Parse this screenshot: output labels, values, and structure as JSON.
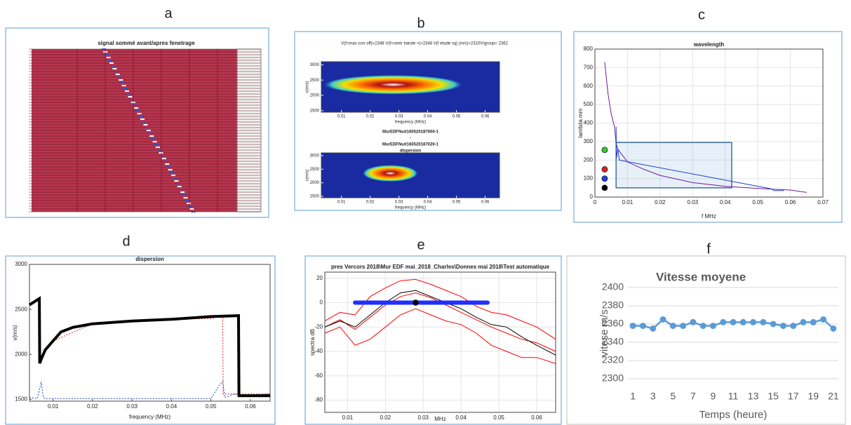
{
  "chart_data": [
    {
      "type": "image",
      "panel": "a",
      "title": "signal sommé avant/apres fenetrage"
    },
    {
      "type": "heatmap",
      "panel": "b",
      "title": "V(f=max corr off)=2348 V(f=centr bande <)=2348 V(f etude sq) (m/s)=2310V/group= 2362",
      "subtitles": [
        "MurEDFNuit160520187000-1",
        "-",
        "MurEDFNuit160520187020-1",
        "dispersion"
      ],
      "xlabel": "frequency (MHz)",
      "ylabel": "v(m/s)",
      "xlim": [
        0.003,
        0.065
      ],
      "xticks": [
        0.01,
        0.02,
        0.03,
        0.04,
        0.05,
        0.06
      ],
      "ylim": [
        1450,
        3100
      ],
      "yticks": [
        1500,
        2000,
        2500,
        3000
      ]
    },
    {
      "type": "line",
      "panel": "c",
      "title": "wavelength",
      "xlabel": "f MHz",
      "ylabel": "lambda mm",
      "xlim": [
        0,
        0.07
      ],
      "xticks": [
        0,
        0.01,
        0.02,
        0.03,
        0.04,
        0.05,
        0.06,
        0.07
      ],
      "ylim": [
        0,
        800
      ],
      "yticks": [
        0,
        100,
        200,
        300,
        400,
        500,
        600,
        700,
        800
      ],
      "grid": true,
      "series": [
        {
          "color": "#6a1b9a",
          "x": [
            0.003,
            0.004,
            0.005,
            0.006,
            0.0065,
            0.007,
            0.01,
            0.015,
            0.02,
            0.03,
            0.04,
            0.05,
            0.06,
            0.065
          ],
          "values": [
            730,
            560,
            450,
            380,
            290,
            260,
            190,
            150,
            117,
            78,
            58,
            47,
            38,
            25
          ]
        },
        {
          "color": "#1f3fd0",
          "x": [
            0.0065,
            0.0066,
            0.007,
            0.0075,
            0.054,
            0.055,
            0.058
          ],
          "values": [
            380,
            210,
            260,
            200,
            45,
            35,
            35
          ]
        }
      ],
      "points": [
        {
          "color": "#33cc33",
          "x": 0.003,
          "value": 255
        },
        {
          "color": "#e02020",
          "x": 0.003,
          "value": 150
        },
        {
          "color": "#2040e0",
          "x": 0.003,
          "value": 100
        },
        {
          "color": "#000000",
          "x": 0.003,
          "value": 50
        }
      ],
      "region": {
        "x": [
          0.0065,
          0.042
        ],
        "values": [
          50,
          295
        ]
      }
    },
    {
      "type": "line",
      "panel": "d",
      "title": "dispersion",
      "xlabel": "frequency (MHz)",
      "ylabel": "v(m/s)",
      "xlim": [
        0.004,
        0.065
      ],
      "xticks": [
        0.01,
        0.02,
        0.03,
        0.04,
        0.05,
        0.06
      ],
      "ylim": [
        1480,
        3000
      ],
      "yticks": [
        1500,
        2000,
        2500,
        3000
      ],
      "grid": false,
      "series": [
        {
          "color": "#e02020",
          "dash": true,
          "x": [
            0.0065,
            0.0066,
            0.007,
            0.01,
            0.02,
            0.04,
            0.05,
            0.052,
            0.053,
            0.0531,
            0.065
          ],
          "values": [
            2600,
            1950,
            1980,
            2150,
            2340,
            2390,
            2400,
            2420,
            2420,
            1560,
            1560
          ]
        },
        {
          "color": "#1f3fd0",
          "dash": true,
          "x": [
            0.004,
            0.006,
            0.0065,
            0.007,
            0.0075,
            0.008,
            0.05,
            0.052,
            0.053,
            0.0535,
            0.056,
            0.058,
            0.065
          ],
          "values": [
            1520,
            1510,
            1600,
            1700,
            1520,
            1510,
            1510,
            1650,
            1700,
            1520,
            1560,
            1540,
            1560
          ]
        },
        {
          "color": "#000000",
          "width": 4,
          "x": [
            0.004,
            0.0065,
            0.0066,
            0.007,
            0.008,
            0.01,
            0.012,
            0.015,
            0.02,
            0.03,
            0.04,
            0.05,
            0.057,
            0.0571,
            0.065
          ],
          "values": [
            2550,
            2620,
            1900,
            1950,
            2050,
            2150,
            2250,
            2300,
            2340,
            2370,
            2390,
            2420,
            2430,
            1540,
            1540
          ]
        }
      ]
    },
    {
      "type": "line",
      "panel": "e",
      "title": "pres Vercors 2018\\Mur EDF mai_2018_Charles\\Donnes mai 2018\\Test automatique",
      "xlabel": "MHz",
      "ylabel": "spectra dB",
      "xlim": [
        0.004,
        0.065
      ],
      "xticks": [
        0.01,
        0.02,
        0.03,
        0.04,
        0.05,
        0.06
      ],
      "ylim": [
        -90,
        25
      ],
      "yticks": [
        -80,
        -60,
        -40,
        -20,
        0,
        20
      ],
      "grid": true,
      "x": [
        0.004,
        0.008,
        0.012,
        0.016,
        0.02,
        0.024,
        0.028,
        0.032,
        0.036,
        0.04,
        0.044,
        0.048,
        0.052,
        0.056,
        0.06,
        0.065
      ],
      "series": [
        {
          "color": "#ff0000",
          "values": [
            -15,
            -8,
            -10,
            5,
            12,
            18,
            19,
            15,
            10,
            5,
            -3,
            -8,
            -10,
            -15,
            -20,
            -30
          ]
        },
        {
          "color": "#ff0000",
          "values": [
            -20,
            -14,
            -22,
            -12,
            -2,
            5,
            8,
            4,
            -2,
            -8,
            -14,
            -20,
            -25,
            -30,
            -33,
            -40
          ]
        },
        {
          "color": "#ff0000",
          "values": [
            -25,
            -20,
            -35,
            -30,
            -20,
            -10,
            -5,
            -10,
            -15,
            -18,
            -25,
            -35,
            -40,
            -45,
            -45,
            -50
          ]
        },
        {
          "color": "#000000",
          "values": [
            -20,
            -15,
            -20,
            -10,
            0,
            8,
            10,
            5,
            0,
            -5,
            -12,
            -18,
            -20,
            -28,
            -35,
            -43
          ]
        }
      ],
      "band": {
        "color": "#1f2fff",
        "x": [
          0.012,
          0.047
        ],
        "values": [
          0,
          0
        ]
      },
      "points": [
        {
          "color": "#000000",
          "x": 0.028,
          "value": 0
        }
      ]
    },
    {
      "type": "category-line",
      "panel": "f",
      "title": "Vitesse moyene",
      "xlabel": "Temps (heure)",
      "ylabel": "vitese m/s",
      "color": "#5b9bd5",
      "categories": [
        "1",
        null,
        "3",
        null,
        "5",
        null,
        "7",
        null,
        "9",
        null,
        "11",
        null,
        "13",
        null,
        "15",
        null,
        "17",
        null,
        "19",
        null,
        "21"
      ],
      "values": [
        2358,
        2358,
        2355,
        2365,
        2358,
        2358,
        2362,
        2358,
        2358,
        2362,
        2362,
        2362,
        2362,
        2362,
        2360,
        2358,
        2358,
        2362,
        2362,
        2365,
        2355
      ],
      "ylim": [
        2300,
        2400
      ],
      "yticks": [
        2300,
        2320,
        2340,
        2360,
        2380,
        2400
      ],
      "grid": true
    }
  ]
}
